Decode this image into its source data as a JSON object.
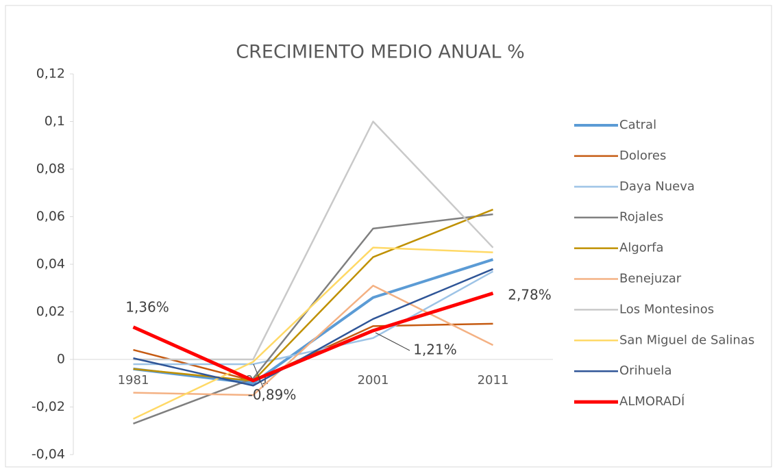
{
  "chart_data": {
    "type": "line",
    "title": "CRECIMIENTO MEDIO ANUAL %",
    "categories": [
      "1981",
      "1991",
      "2001",
      "2011"
    ],
    "ylim": [
      -0.04,
      0.12
    ],
    "yticks": [
      {
        "value": -0.04,
        "label": "-0,04"
      },
      {
        "value": -0.02,
        "label": "-0,02"
      },
      0,
      {
        "value": 0.02,
        "label": "0,02"
      },
      {
        "value": 0.04,
        "label": "0,04"
      },
      {
        "value": 0.06,
        "label": "0,06"
      },
      {
        "value": 0.08,
        "label": "0,08"
      },
      {
        "value": 0.1,
        "label": "0,1"
      },
      {
        "value": 0.12,
        "label": "0,12"
      }
    ],
    "legend": "right",
    "series": [
      {
        "name": "Catral",
        "color": "#5b9bd5",
        "values": [
          -0.004,
          -0.01,
          0.026,
          0.042
        ]
      },
      {
        "name": "Dolores",
        "color": "#c55a11",
        "values": [
          0.004,
          -0.009,
          0.014,
          0.015
        ]
      },
      {
        "name": "Daya Nueva",
        "color": "#9dc3e6",
        "values": [
          -0.002,
          -0.002,
          0.009,
          0.037
        ]
      },
      {
        "name": "Rojales",
        "color": "#7f7f7f",
        "values": [
          -0.027,
          -0.008,
          0.055,
          0.061
        ]
      },
      {
        "name": "Algorfa",
        "color": "#bf9000",
        "values": [
          -0.004,
          -0.009,
          0.043,
          0.063
        ]
      },
      {
        "name": "Benejuzar",
        "color": "#f4b183",
        "values": [
          -0.014,
          -0.015,
          0.031,
          0.006
        ]
      },
      {
        "name": "Los Montesinos",
        "color": "#c9c9c9",
        "values": [
          0,
          0,
          0.1,
          0.047
        ]
      },
      {
        "name": "San Miguel de Salinas",
        "color": "#ffd966",
        "values": [
          -0.025,
          -0.001,
          0.047,
          0.045
        ]
      },
      {
        "name": "Orihuela",
        "color": "#2f5597",
        "values": [
          0.0005,
          -0.011,
          0.017,
          0.038
        ]
      },
      {
        "name": "ALMORADÍ",
        "color": "#ff0000",
        "values": [
          0.0136,
          -0.0089,
          0.0121,
          0.0278
        ],
        "value_labels": [
          "1,36%",
          "-0,89%",
          "1,21%",
          "2,78%"
        ]
      }
    ]
  }
}
